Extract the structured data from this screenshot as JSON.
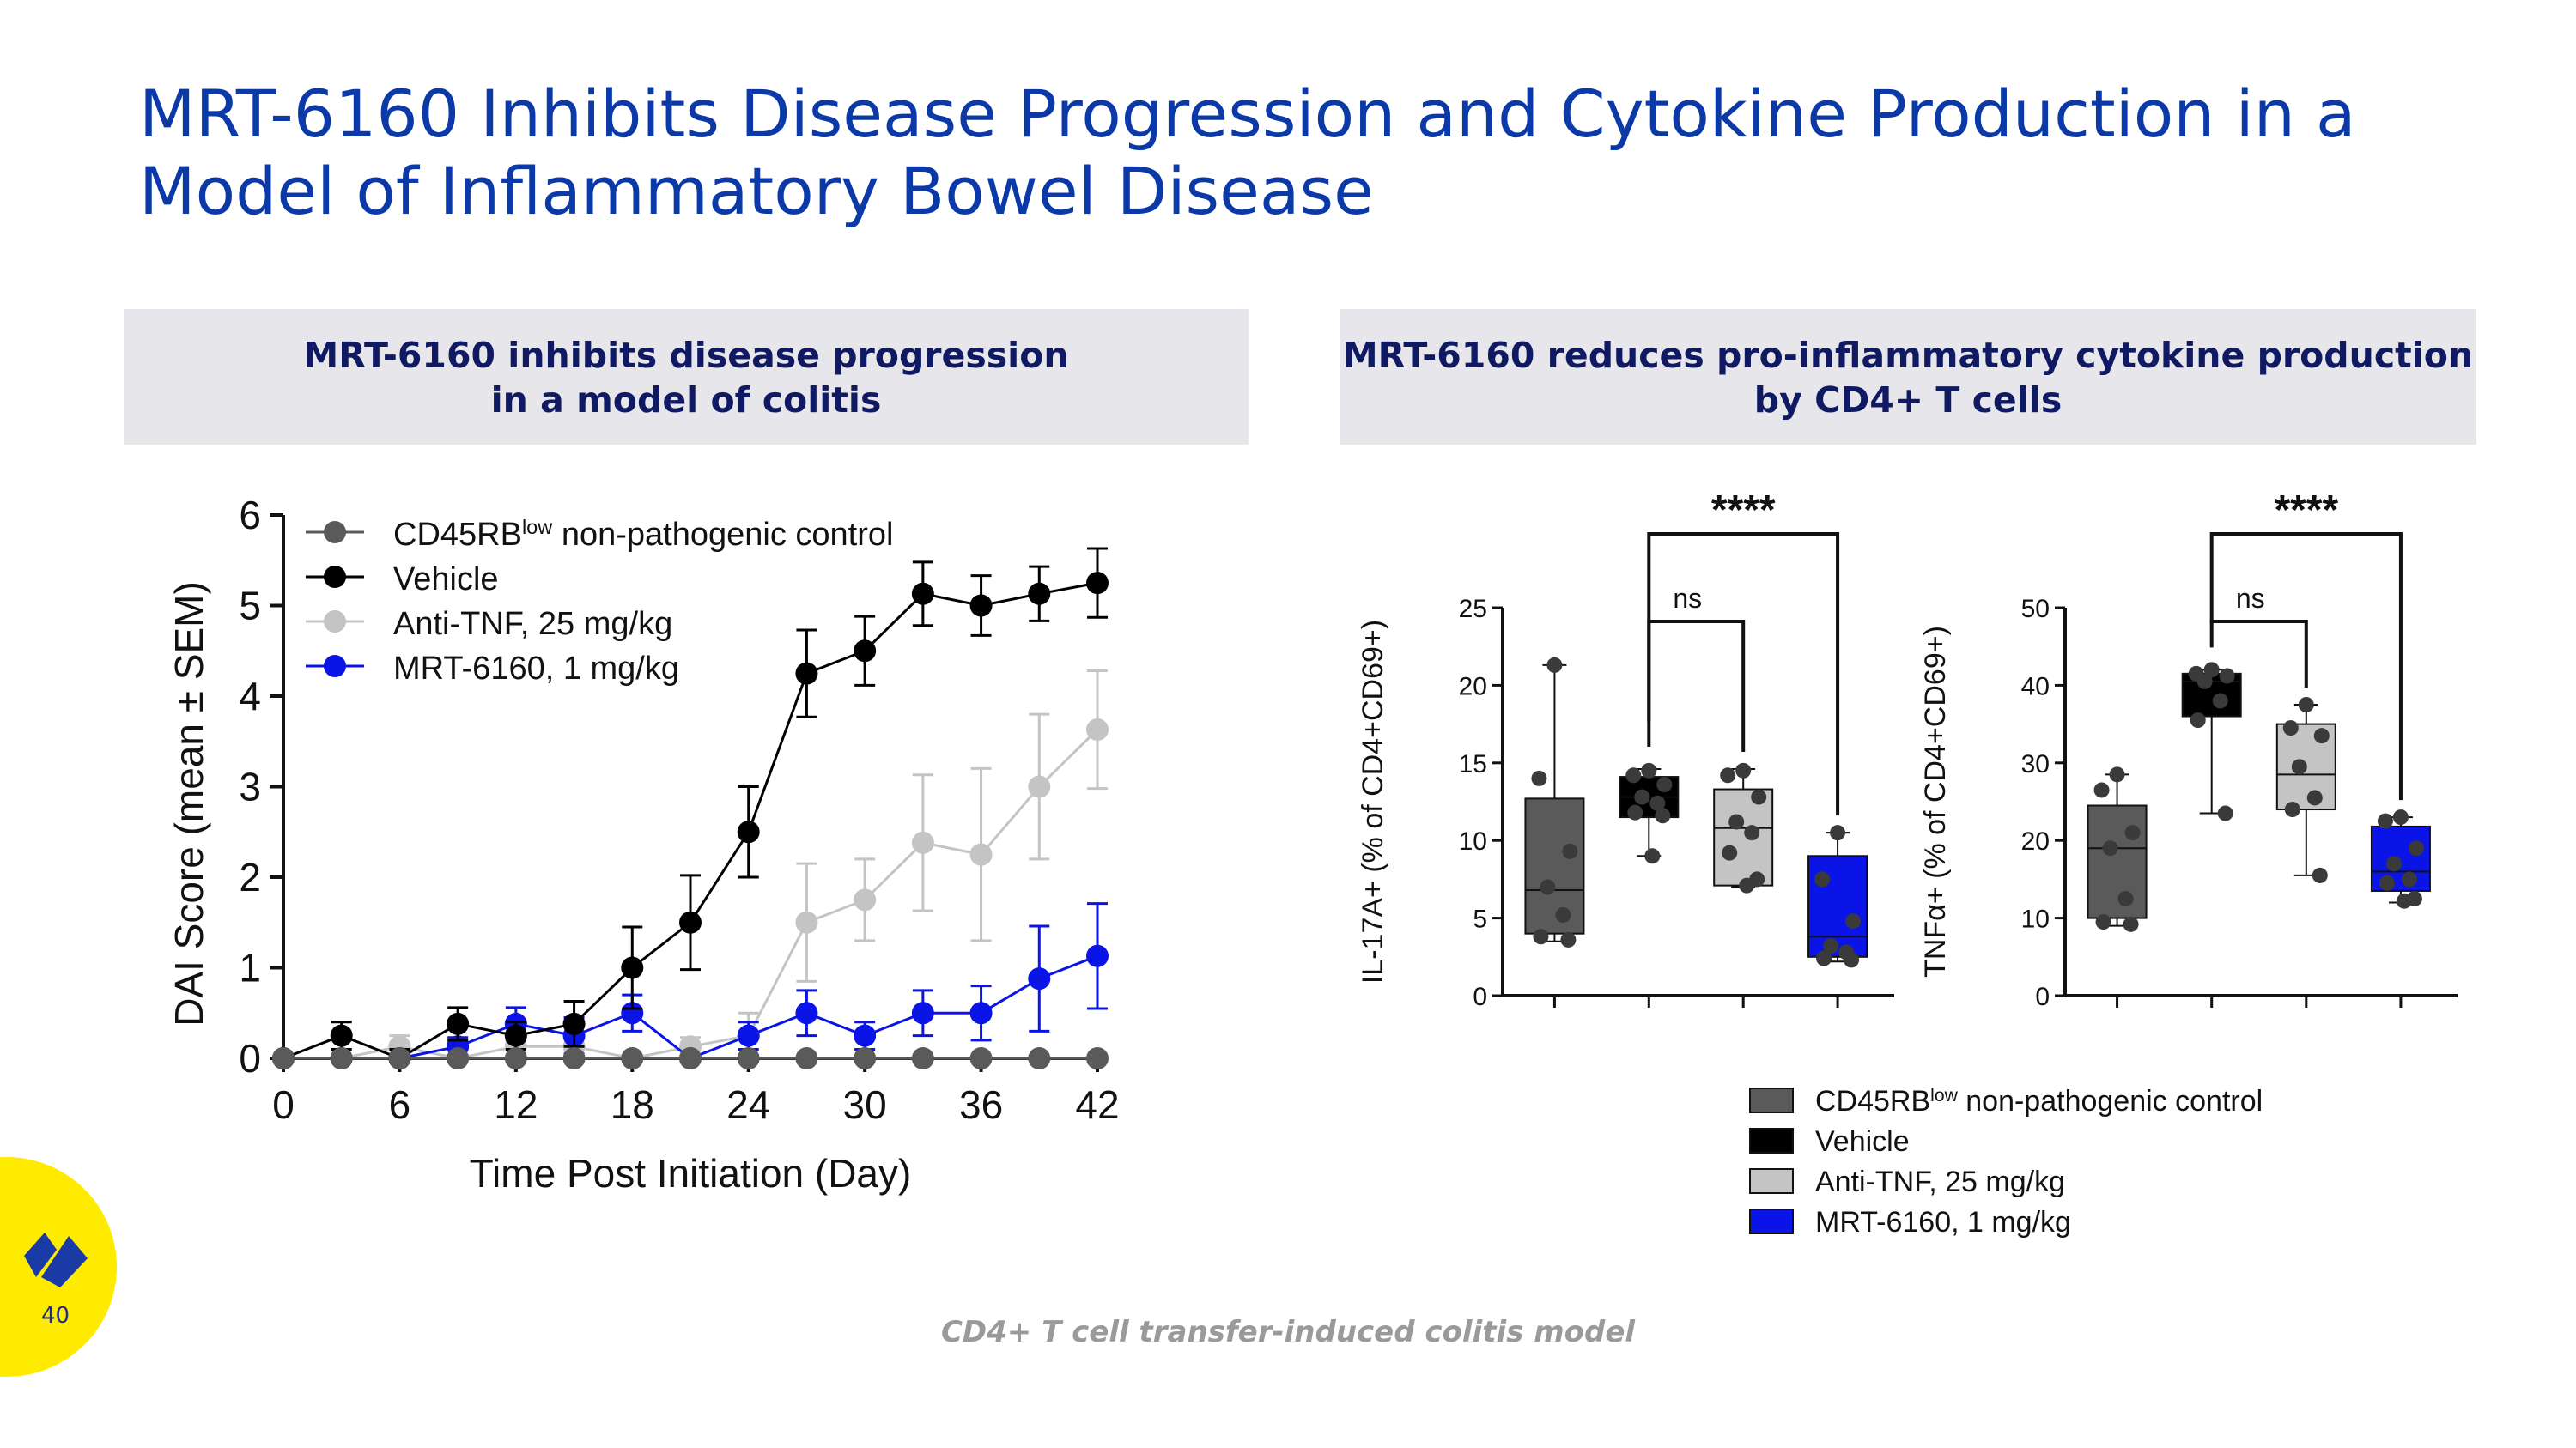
{
  "slide": {
    "title_line1": "MRT-6160 Inhibits Disease Progression and Cytokine Production in a",
    "title_line2": "Model of Inflammatory Bowel Disease",
    "left_panel_line1": "MRT-6160 inhibits disease progression",
    "left_panel_line2": "in a model of colitis",
    "right_panel_line1": "MRT-6160 reduces pro-inflammatory cytokine production",
    "right_panel_line2": "by CD4+ T cells",
    "footnote": "CD4+ T cell transfer-induced colitis model",
    "page_number": "40"
  },
  "colors": {
    "title": "#0b3aa8",
    "control": "#5a5a5a",
    "vehicle": "#000000",
    "anti_tnf": "#c4c4c4",
    "mrt": "#0a14e6",
    "logo_bg": "#ffeb00",
    "logo_mark": "#1a3aa5"
  },
  "chart_data": [
    {
      "type": "line",
      "ylabel": "DAI Score (mean ± SEM)",
      "xlabel": "Time Post Initiation (Day)",
      "xlim": [
        0,
        42
      ],
      "ylim": [
        0,
        6
      ],
      "xticks": [
        "0",
        "6",
        "12",
        "18",
        "24",
        "30",
        "36",
        "42"
      ],
      "yticks": [
        "0",
        "1",
        "2",
        "3",
        "4",
        "5",
        "6"
      ],
      "x": [
        0,
        3,
        6,
        9,
        12,
        15,
        18,
        21,
        24,
        27,
        30,
        33,
        36,
        39,
        42
      ],
      "legend_position": "top-left",
      "series": [
        {
          "name": "CD45RB",
          "sup": "low",
          "suffix": " non-pathogenic control",
          "color_key": "control",
          "values": [
            0,
            0,
            0,
            0,
            0,
            0,
            0,
            0,
            0,
            0,
            0,
            0,
            0,
            0,
            0
          ],
          "errors": [
            0,
            0,
            0,
            0,
            0,
            0,
            0,
            0,
            0,
            0,
            0,
            0,
            0,
            0,
            0
          ]
        },
        {
          "name": "Vehicle",
          "sup": "",
          "suffix": "",
          "color_key": "vehicle",
          "values": [
            0,
            0.25,
            0,
            0.38,
            0.25,
            0.38,
            1.0,
            1.5,
            2.5,
            4.25,
            4.5,
            5.13,
            5.0,
            5.13,
            5.25
          ],
          "errors": [
            0,
            0.15,
            0.1,
            0.18,
            0.15,
            0.25,
            0.45,
            0.52,
            0.5,
            0.48,
            0.38,
            0.35,
            0.33,
            0.3,
            0.38
          ]
        },
        {
          "name": "Anti-TNF, 25 mg/kg",
          "sup": "",
          "suffix": "",
          "color_key": "anti_tnf",
          "values": [
            0,
            0,
            0.13,
            0,
            0.13,
            0.13,
            0,
            0.13,
            0.25,
            1.5,
            1.75,
            2.38,
            2.25,
            3.0,
            3.63
          ],
          "errors": [
            0,
            0,
            0.12,
            0,
            0.1,
            0.1,
            0,
            0.1,
            0.25,
            0.65,
            0.45,
            0.75,
            0.95,
            0.8,
            0.65
          ]
        },
        {
          "name": "MRT-6160, 1 mg/kg",
          "sup": "",
          "suffix": "",
          "color_key": "mrt",
          "values": [
            0,
            0,
            0,
            0.13,
            0.38,
            0.25,
            0.5,
            0,
            0.25,
            0.5,
            0.25,
            0.5,
            0.5,
            0.88,
            1.13
          ],
          "errors": [
            0,
            0,
            0,
            0.1,
            0.18,
            0.2,
            0.2,
            0,
            0.15,
            0.25,
            0.15,
            0.25,
            0.3,
            0.58,
            0.58
          ]
        }
      ]
    },
    {
      "type": "box",
      "ylabel_prefix": "IL-17A+",
      "ylabel_suffix": " (% of CD4+CD69+)",
      "ylim": [
        0,
        25
      ],
      "yticks": [
        "0",
        "5",
        "10",
        "15",
        "20",
        "25"
      ],
      "significance": [
        "****",
        "ns"
      ],
      "groups": [
        {
          "name": "CD45RB low non-pathogenic control",
          "color_key": "control",
          "min": 3.5,
          "q1": 4.0,
          "median": 6.8,
          "q3": 12.7,
          "max": 21.3,
          "points": [
            21.3,
            14.0,
            9.3,
            7.0,
            5.2,
            3.8,
            3.6
          ]
        },
        {
          "name": "Vehicle",
          "color_key": "vehicle",
          "min": 9.0,
          "q1": 11.5,
          "median": 12.8,
          "q3": 14.1,
          "max": 14.6,
          "points": [
            14.5,
            14.2,
            13.6,
            12.8,
            12.4,
            11.8,
            11.6,
            9.0
          ]
        },
        {
          "name": "Anti-TNF, 25 mg/kg",
          "color_key": "anti_tnf",
          "min": 7.0,
          "q1": 7.1,
          "median": 10.8,
          "q3": 13.3,
          "max": 14.6,
          "points": [
            14.5,
            14.2,
            12.8,
            11.2,
            10.5,
            9.2,
            7.5,
            7.1
          ]
        },
        {
          "name": "MRT-6160, 1 mg/kg",
          "color_key": "mrt",
          "min": 2.2,
          "q1": 2.5,
          "median": 3.8,
          "q3": 9.0,
          "max": 10.5,
          "points": [
            10.5,
            7.5,
            4.8,
            3.2,
            2.8,
            2.4,
            2.3
          ]
        }
      ]
    },
    {
      "type": "box",
      "ylabel_prefix": "TNFα+",
      "ylabel_suffix": " (% of CD4+CD69+)",
      "ylim": [
        0,
        50
      ],
      "yticks": [
        "0",
        "10",
        "20",
        "30",
        "40",
        "50"
      ],
      "significance": [
        "****",
        "ns"
      ],
      "groups": [
        {
          "name": "CD45RB low non-pathogenic control",
          "color_key": "control",
          "min": 9.0,
          "q1": 10.0,
          "median": 19.0,
          "q3": 24.5,
          "max": 28.5,
          "points": [
            28.5,
            26.5,
            21.0,
            19.0,
            12.5,
            9.5,
            9.2
          ]
        },
        {
          "name": "Vehicle",
          "color_key": "vehicle",
          "min": 23.5,
          "q1": 36.0,
          "median": 40.5,
          "q3": 41.5,
          "max": 42.0,
          "points": [
            42.0,
            41.5,
            41.2,
            40.5,
            38.0,
            35.5,
            23.5
          ]
        },
        {
          "name": "Anti-TNF, 25 mg/kg",
          "color_key": "anti_tnf",
          "min": 15.5,
          "q1": 24.0,
          "median": 28.5,
          "q3": 35.0,
          "max": 37.5,
          "points": [
            37.5,
            34.5,
            33.5,
            29.5,
            25.5,
            24.0,
            15.5
          ]
        },
        {
          "name": "MRT-6160, 1 mg/kg",
          "color_key": "mrt",
          "min": 12.0,
          "q1": 13.5,
          "median": 16.0,
          "q3": 21.8,
          "max": 23.0,
          "points": [
            23.0,
            22.5,
            19.0,
            17.0,
            15.0,
            14.5,
            12.5,
            12.2
          ]
        }
      ]
    }
  ],
  "bottom_legend": [
    {
      "label": "CD45RB",
      "sup": "low",
      "suffix": " non-pathogenic control",
      "color_key": "control"
    },
    {
      "label": "Vehicle",
      "sup": "",
      "suffix": "",
      "color_key": "vehicle"
    },
    {
      "label": "Anti-TNF, 25 mg/kg",
      "sup": "",
      "suffix": "",
      "color_key": "anti_tnf"
    },
    {
      "label": "MRT-6160, 1 mg/kg",
      "sup": "",
      "suffix": "",
      "color_key": "mrt"
    }
  ]
}
